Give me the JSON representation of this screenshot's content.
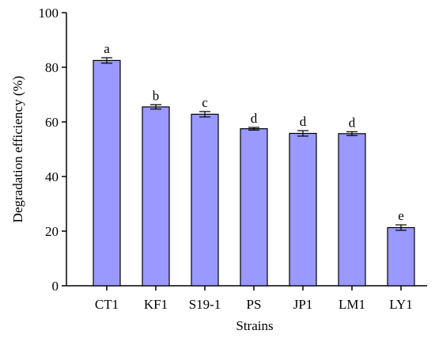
{
  "chart_data": {
    "type": "bar",
    "title": "",
    "xlabel": "Strains",
    "ylabel": "Degradation efficiency (%)",
    "ylim": [
      0,
      100
    ],
    "yticks": [
      0,
      20,
      40,
      60,
      80,
      100
    ],
    "grid": false,
    "legend": "none",
    "categories": [
      "CT1",
      "KF1",
      "S19-1",
      "PS",
      "JP1",
      "LM1",
      "LY1"
    ],
    "values": [
      82.5,
      65.5,
      62.8,
      57.5,
      55.8,
      55.7,
      21.3
    ],
    "errors": [
      1.0,
      0.8,
      1.0,
      0.5,
      1.0,
      0.7,
      1.0
    ],
    "significance": [
      "a",
      "b",
      "c",
      "d",
      "d",
      "d",
      "e"
    ],
    "bar_color": "#9999ff",
    "bar_edge_color": "#000000"
  }
}
